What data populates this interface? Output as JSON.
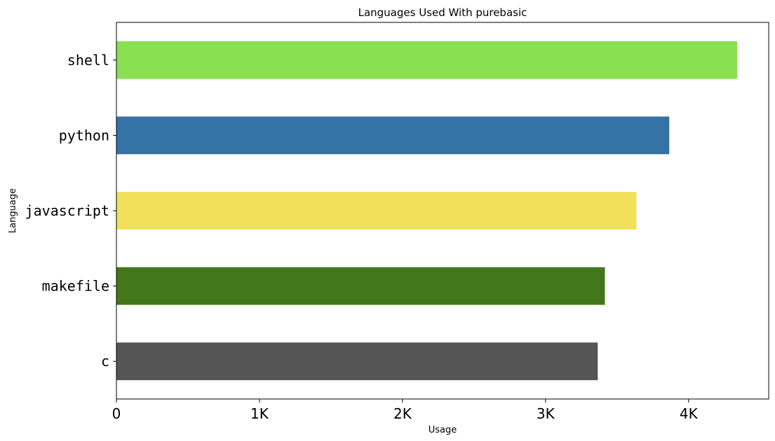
{
  "chart_data": {
    "type": "bar",
    "orientation": "horizontal",
    "title": "Languages Used With purebasic",
    "xlabel": "Usage",
    "ylabel": "Language",
    "categories": [
      "shell",
      "python",
      "javascript",
      "makefile",
      "c"
    ],
    "values": [
      4340,
      3865,
      3635,
      3415,
      3365
    ],
    "colors": [
      "#89e051",
      "#3572a5",
      "#f1e05a",
      "#427819",
      "#555555"
    ],
    "xlim": [
      0,
      4560
    ],
    "xticks": [
      0,
      1000,
      2000,
      3000,
      4000
    ],
    "xtick_labels": [
      "0",
      "1K",
      "2K",
      "3K",
      "4K"
    ],
    "grid": false,
    "legend": "none"
  }
}
